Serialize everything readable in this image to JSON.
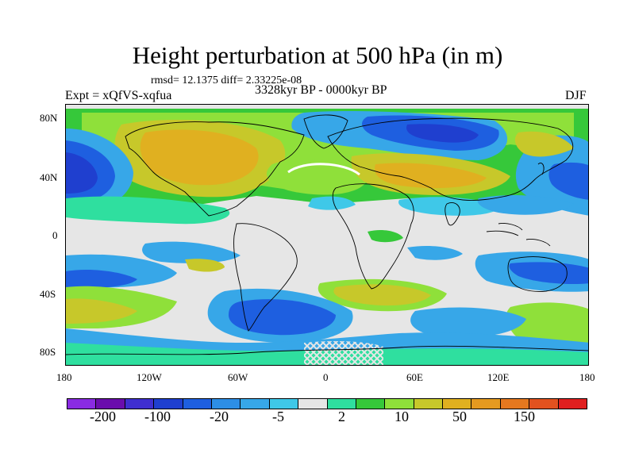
{
  "title": "Height perturbation at 500 hPa (in m)",
  "stats": "rmsd= 12.1375 diff= 2.33225e-08",
  "period": "3328kyr BP - 0000kyr BP",
  "experiment": "Expt = xQfVS-xqfua",
  "season": "DJF",
  "y_axis_labels": [
    "80N",
    "40N",
    "0",
    "40S",
    "80S"
  ],
  "x_axis_labels": [
    "180",
    "120W",
    "60W",
    "0",
    "60E",
    "120E",
    "180"
  ],
  "colorbar": {
    "colors": [
      "#8a2be2",
      "#6a0dad",
      "#3f2fd0",
      "#1f3fcf",
      "#1e5fe0",
      "#2d8ee6",
      "#37a7e8",
      "#3fc8e8",
      "#e6e6e6",
      "#2fdf9f",
      "#36c83a",
      "#8fe03a",
      "#c7c82a",
      "#e0b020",
      "#e59a20",
      "#e5781f",
      "#e2521f",
      "#e02020"
    ],
    "labels": [
      "-200",
      "-100",
      "-20",
      "-5",
      "2",
      "10",
      "50",
      "150"
    ]
  }
}
